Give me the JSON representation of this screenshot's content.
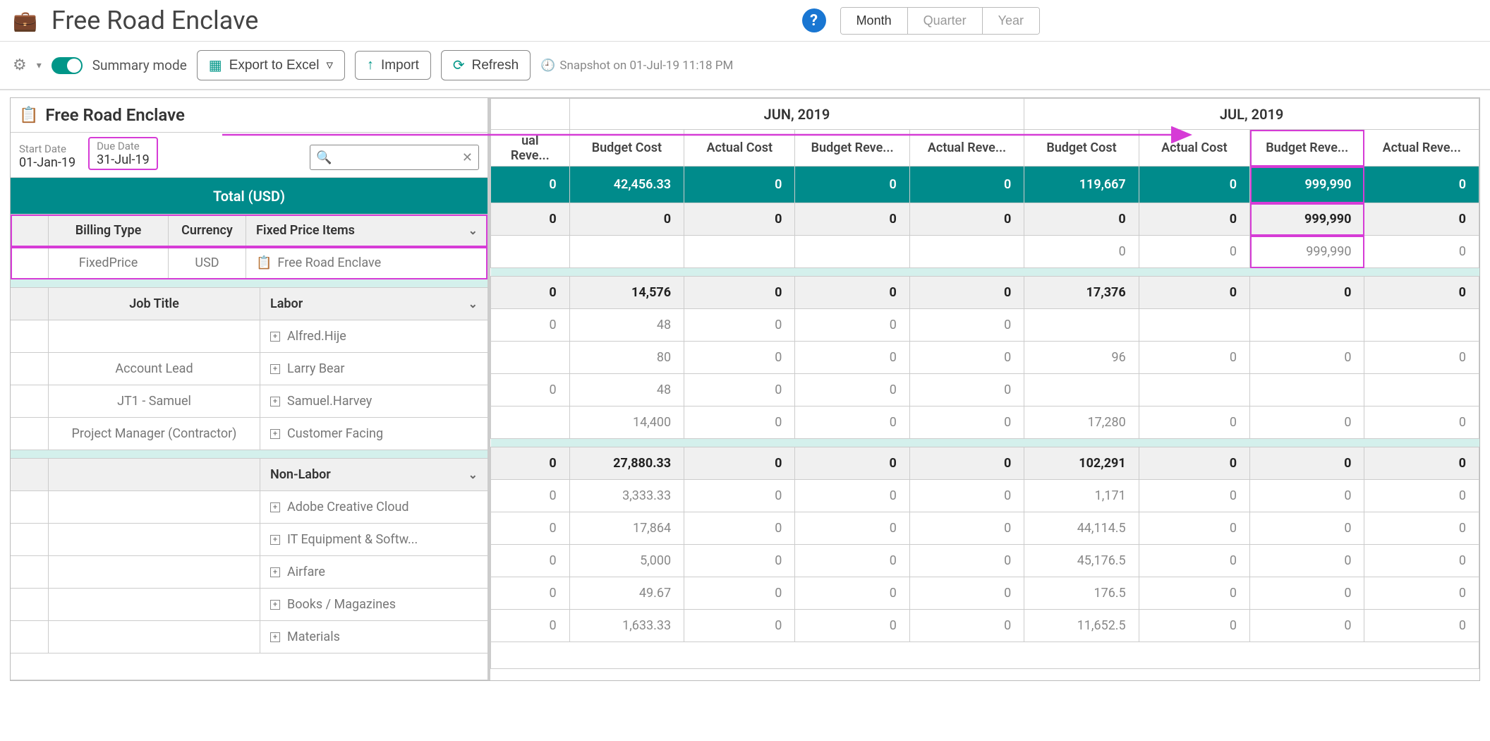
{
  "header": {
    "title": "Free Road Enclave",
    "periods": {
      "month": "Month",
      "quarter": "Quarter",
      "year": "Year"
    }
  },
  "toolbar": {
    "summary_mode": "Summary mode",
    "export": "Export to Excel",
    "import": "Import",
    "refresh": "Refresh",
    "snapshot": "Snapshot on 01-Jul-19 11:18 PM"
  },
  "project": {
    "name": "Free Road Enclave",
    "start_label": "Start Date",
    "start_value": "01-Jan-19",
    "due_label": "Due Date",
    "due_value": "31-Jul-19"
  },
  "columns": {
    "period_a": "JUN, 2019",
    "period_b": "JUL, 2019",
    "c0": "ual Reve...",
    "c1": "Budget Cost",
    "c2": "Actual Cost",
    "c3": "Budget Reve...",
    "c4": "Actual Reve...",
    "c5": "Budget Cost",
    "c6": "Actual Cost",
    "c7": "Budget Reve...",
    "c8": "Actual Reve..."
  },
  "total_label": "Total (USD)",
  "total_row": [
    "0",
    "42,456.33",
    "0",
    "0",
    "0",
    "119,667",
    "0",
    "999,990",
    "0"
  ],
  "fixed_head": {
    "a": "Billing Type",
    "b": "Currency",
    "c": "Fixed Price Items"
  },
  "fixed_head_row": [
    "0",
    "0",
    "0",
    "0",
    "0",
    "0",
    "0",
    "999,990",
    "0"
  ],
  "fixed_sub": {
    "a": "FixedPrice",
    "b": "USD",
    "c": "Free Road Enclave"
  },
  "fixed_sub_row": [
    "",
    "",
    "",
    "",
    "",
    "0",
    "0",
    "999,990",
    "0"
  ],
  "labor_head": {
    "a": "Job Title",
    "b": "Labor"
  },
  "labor_head_row": [
    "0",
    "14,576",
    "0",
    "0",
    "0",
    "17,376",
    "0",
    "0",
    "0"
  ],
  "labor_rows": [
    {
      "job": "",
      "name": "Alfred.Hije",
      "vals": [
        "0",
        "48",
        "0",
        "0",
        "0",
        "",
        "",
        "",
        ""
      ]
    },
    {
      "job": "Account Lead",
      "name": "Larry Bear",
      "vals": [
        "",
        "80",
        "0",
        "0",
        "0",
        "96",
        "0",
        "0",
        "0"
      ]
    },
    {
      "job": "JT1 - Samuel",
      "name": "Samuel.Harvey",
      "vals": [
        "0",
        "48",
        "0",
        "0",
        "0",
        "",
        "",
        "",
        ""
      ]
    },
    {
      "job": "Project Manager (Contractor)",
      "name": "Customer Facing",
      "vals": [
        "",
        "14,400",
        "0",
        "0",
        "0",
        "17,280",
        "0",
        "0",
        "0"
      ]
    }
  ],
  "nonlabor_head": "Non-Labor",
  "nonlabor_head_row": [
    "0",
    "27,880.33",
    "0",
    "0",
    "0",
    "102,291",
    "0",
    "0",
    "0"
  ],
  "nonlabor_rows": [
    {
      "name": "Adobe Creative Cloud",
      "vals": [
        "0",
        "3,333.33",
        "0",
        "0",
        "0",
        "1,171",
        "0",
        "0",
        "0"
      ]
    },
    {
      "name": "IT Equipment & Softw...",
      "vals": [
        "0",
        "17,864",
        "0",
        "0",
        "0",
        "44,114.5",
        "0",
        "0",
        "0"
      ]
    },
    {
      "name": "Airfare",
      "vals": [
        "0",
        "5,000",
        "0",
        "0",
        "0",
        "45,176.5",
        "0",
        "0",
        "0"
      ]
    },
    {
      "name": "Books / Magazines",
      "vals": [
        "0",
        "49.67",
        "0",
        "0",
        "0",
        "176.5",
        "0",
        "0",
        "0"
      ]
    },
    {
      "name": "Materials",
      "vals": [
        "0",
        "1,633.33",
        "0",
        "0",
        "0",
        "11,652.5",
        "0",
        "0",
        "0"
      ]
    }
  ],
  "colors": {
    "teal": "#008b8b",
    "highlight": "#d63cd6",
    "help": "#1976d2"
  }
}
